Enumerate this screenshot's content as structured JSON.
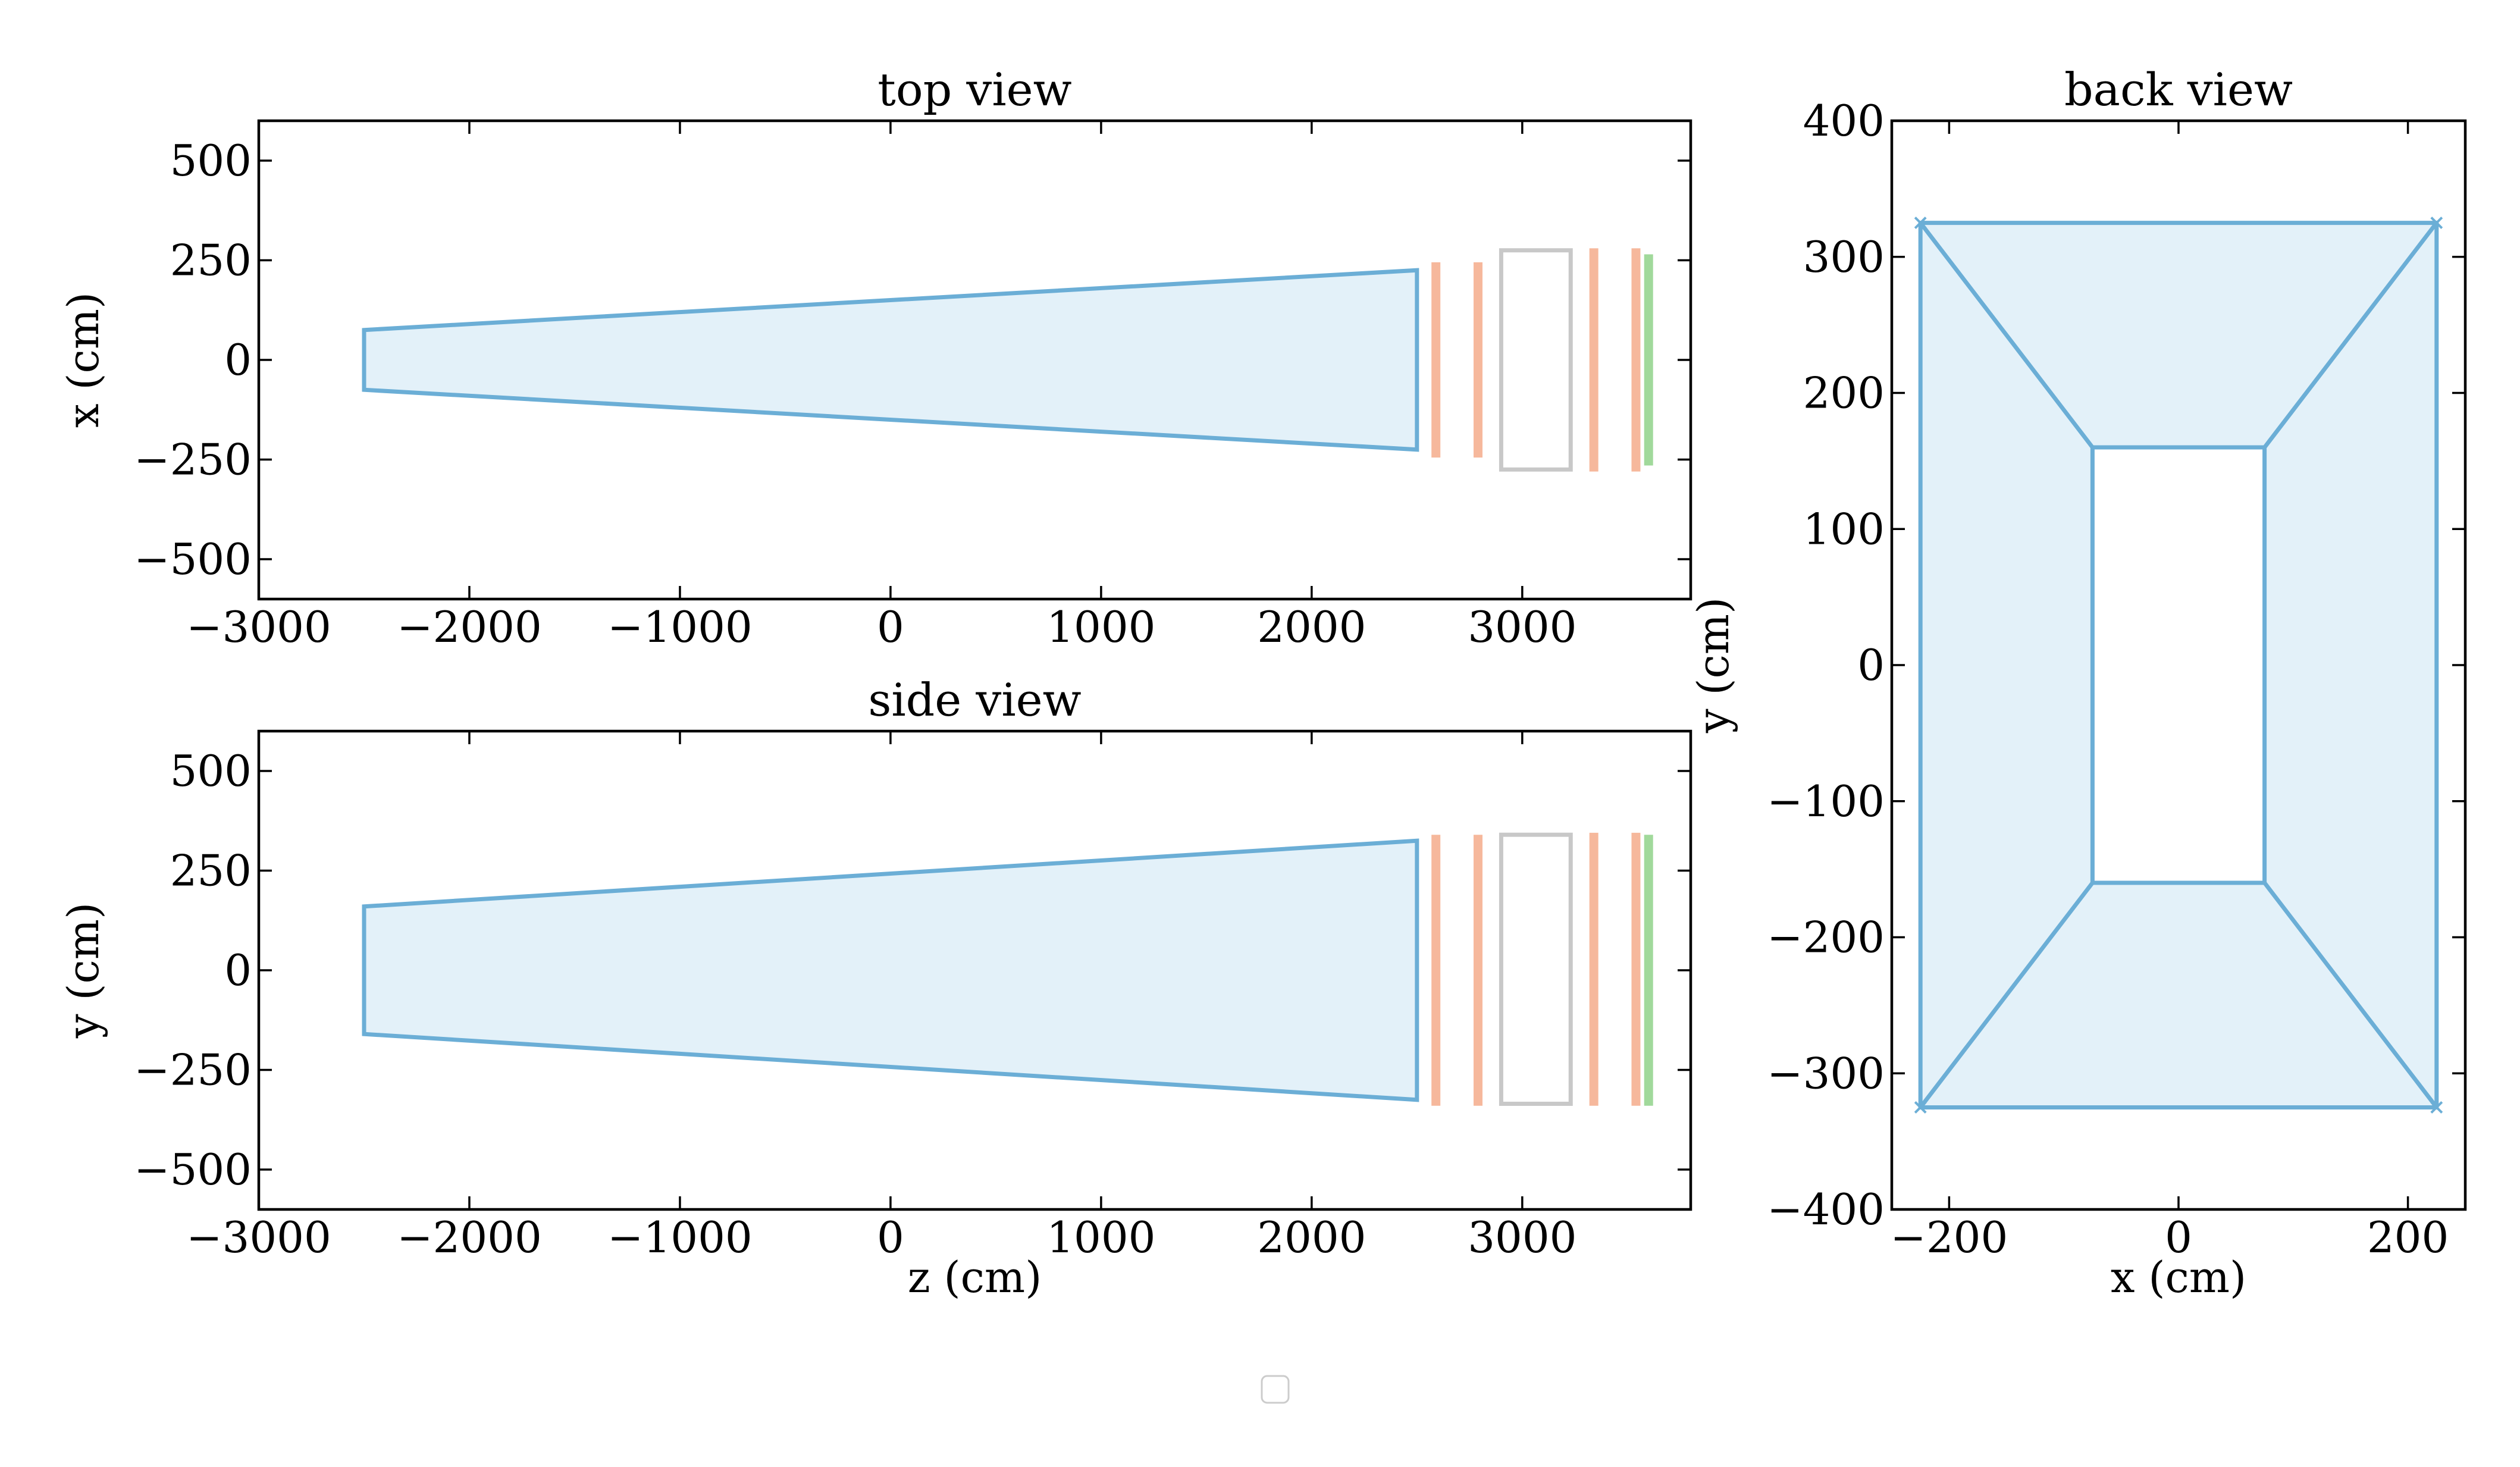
{
  "chart_data": [
    {
      "id": "top",
      "type": "line",
      "title": "top view",
      "xlabel": "",
      "ylabel": "x (cm)",
      "xlim": [
        -3000,
        3800
      ],
      "ylim": [
        -600,
        600
      ],
      "xticks": [
        -3000,
        -2000,
        -1000,
        0,
        1000,
        2000,
        3000
      ],
      "xtick_labels": [
        "−3000",
        "−2000",
        "−1000",
        "0",
        "1000",
        "2000",
        "3000"
      ],
      "yticks": [
        -500,
        -250,
        0,
        250,
        500
      ],
      "ytick_labels": [
        "−500",
        "−250",
        "0",
        "250",
        "500"
      ],
      "shapes": [
        {
          "kind": "polygon",
          "stroke": "#6baed6",
          "fill": "#e3f1f9",
          "x": [
            -2500,
            2500,
            2500,
            -2500
          ],
          "y": [
            75,
            225,
            -225,
            -75
          ]
        },
        {
          "kind": "rect",
          "stroke": "#c8c8c8",
          "fill": "none",
          "x": [
            2900,
            3230
          ],
          "y": [
            -275,
            275
          ]
        },
        {
          "kind": "bar",
          "color": "#f6b89c",
          "x": 2590,
          "y": [
            -245,
            245
          ]
        },
        {
          "kind": "bar",
          "color": "#f6b89c",
          "x": 2790,
          "y": [
            -245,
            245
          ]
        },
        {
          "kind": "bar",
          "color": "#f6b89c",
          "x": 3340,
          "y": [
            -280,
            280
          ]
        },
        {
          "kind": "bar",
          "color": "#f6b89c",
          "x": 3540,
          "y": [
            -280,
            280
          ]
        },
        {
          "kind": "bar",
          "color": "#a1d99b",
          "x": 3600,
          "y": [
            -265,
            265
          ]
        }
      ]
    },
    {
      "id": "side",
      "type": "line",
      "title": "side view",
      "xlabel": "z (cm)",
      "ylabel": "y (cm)",
      "xlim": [
        -3000,
        3800
      ],
      "ylim": [
        -600,
        600
      ],
      "xticks": [
        -3000,
        -2000,
        -1000,
        0,
        1000,
        2000,
        3000
      ],
      "xtick_labels": [
        "−3000",
        "−2000",
        "−1000",
        "0",
        "1000",
        "2000",
        "3000"
      ],
      "yticks": [
        -500,
        -250,
        0,
        250,
        500
      ],
      "ytick_labels": [
        "−500",
        "−250",
        "0",
        "250",
        "500"
      ],
      "shapes": [
        {
          "kind": "polygon",
          "stroke": "#6baed6",
          "fill": "#e3f1f9",
          "x": [
            -2500,
            2500,
            2500,
            -2500
          ],
          "y": [
            160,
            325,
            -325,
            -160
          ]
        },
        {
          "kind": "rect",
          "stroke": "#c8c8c8",
          "fill": "none",
          "x": [
            2900,
            3230
          ],
          "y": [
            -335,
            340
          ]
        },
        {
          "kind": "bar",
          "color": "#f6b89c",
          "x": 2590,
          "y": [
            -340,
            340
          ]
        },
        {
          "kind": "bar",
          "color": "#f6b89c",
          "x": 2790,
          "y": [
            -340,
            340
          ]
        },
        {
          "kind": "bar",
          "color": "#f6b89c",
          "x": 3340,
          "y": [
            -340,
            345
          ]
        },
        {
          "kind": "bar",
          "color": "#f6b89c",
          "x": 3540,
          "y": [
            -340,
            345
          ]
        },
        {
          "kind": "bar",
          "color": "#a1d99b",
          "x": 3600,
          "y": [
            -340,
            340
          ]
        }
      ]
    },
    {
      "id": "back",
      "type": "line",
      "title": "back view",
      "xlabel": "x (cm)",
      "ylabel": "y (cm)",
      "xlim": [
        -250,
        250
      ],
      "ylim": [
        -400,
        400
      ],
      "xticks": [
        -200,
        0,
        200
      ],
      "xtick_labels": [
        "−200",
        "0",
        "200"
      ],
      "yticks": [
        -400,
        -300,
        -200,
        -100,
        0,
        100,
        200,
        300,
        400
      ],
      "ytick_labels": [
        "−400",
        "−300",
        "−200",
        "−100",
        "0",
        "100",
        "200",
        "300",
        "400"
      ],
      "shapes": [
        {
          "kind": "frustum",
          "stroke": "#6baed6",
          "fill": "#e3f1f9",
          "outer": {
            "x": 225,
            "y": 325
          },
          "inner": {
            "x": 75,
            "y": 160
          }
        }
      ]
    }
  ],
  "legend": {
    "entries": [],
    "placement": "bottom-center"
  }
}
